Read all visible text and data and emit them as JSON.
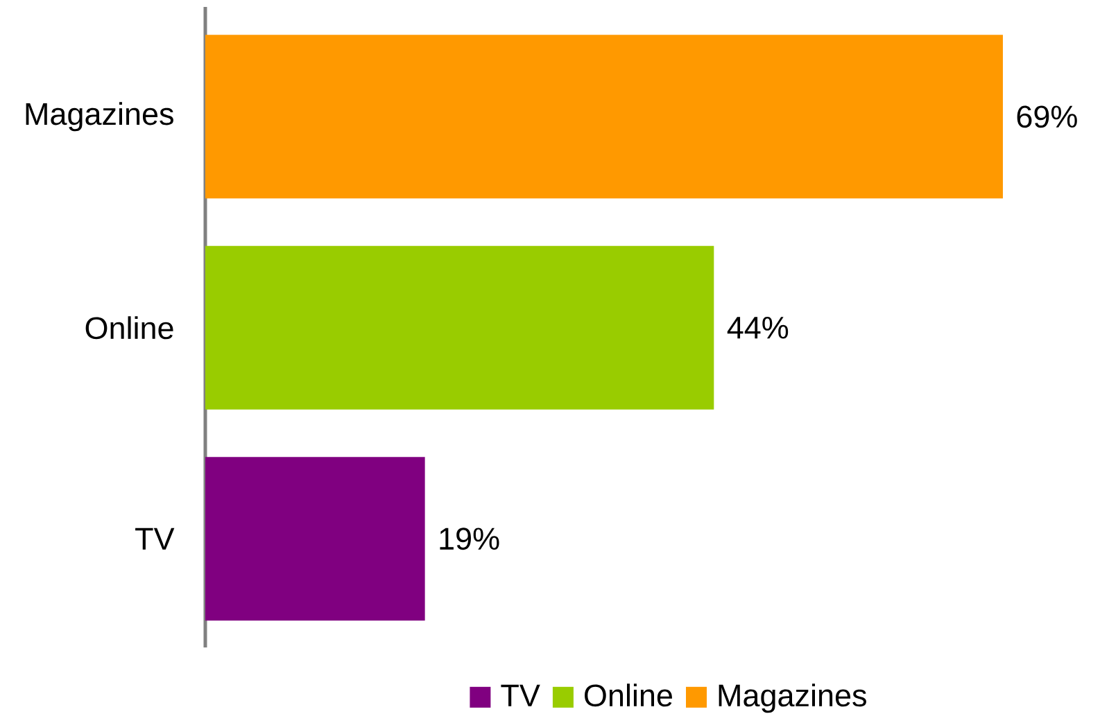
{
  "chart_data": {
    "type": "bar",
    "orientation": "horizontal",
    "categories": [
      "Magazines",
      "Online",
      "TV"
    ],
    "series": [
      {
        "name": "TV",
        "color": "#800080",
        "values": [
          null,
          null,
          19
        ],
        "value_labels": [
          null,
          null,
          "19%"
        ]
      },
      {
        "name": "Online",
        "color": "#99cc00",
        "values": [
          null,
          44,
          null
        ],
        "value_labels": [
          null,
          "44%",
          null
        ]
      },
      {
        "name": "Magazines",
        "color": "#ff9900",
        "values": [
          69,
          null,
          null
        ],
        "value_labels": [
          "69%",
          null,
          null
        ]
      }
    ],
    "tick_labels": "y",
    "legend": "bottom"
  }
}
